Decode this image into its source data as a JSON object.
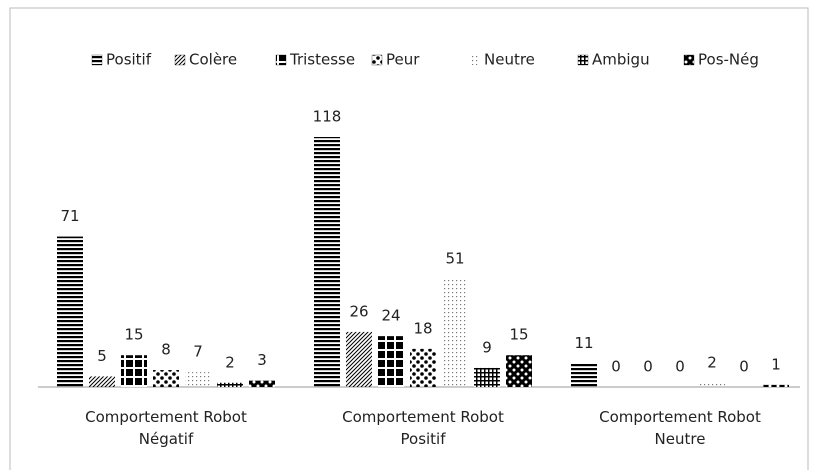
{
  "chart_data": {
    "type": "bar",
    "categories": [
      "Comportement Robot Négatif",
      "Comportement Robot Positif",
      "Comportement Robot Neutre"
    ],
    "series": [
      {
        "name": "Positif",
        "color": "#000000",
        "values": [
          71,
          118,
          11
        ]
      },
      {
        "name": "Colère",
        "color": "#000000",
        "values": [
          5,
          26,
          0
        ]
      },
      {
        "name": "Tristesse",
        "color": "#000000",
        "values": [
          15,
          24,
          0
        ]
      },
      {
        "name": "Peur",
        "color": "#000000",
        "values": [
          8,
          18,
          0
        ]
      },
      {
        "name": "Neutre",
        "color": "#000000",
        "values": [
          7,
          51,
          2
        ]
      },
      {
        "name": "Ambigu",
        "color": "#000000",
        "values": [
          2,
          9,
          0
        ]
      },
      {
        "name": "Pos-Nég",
        "color": "#000000",
        "values": [
          3,
          15,
          1
        ]
      }
    ],
    "legend": "top"
  }
}
